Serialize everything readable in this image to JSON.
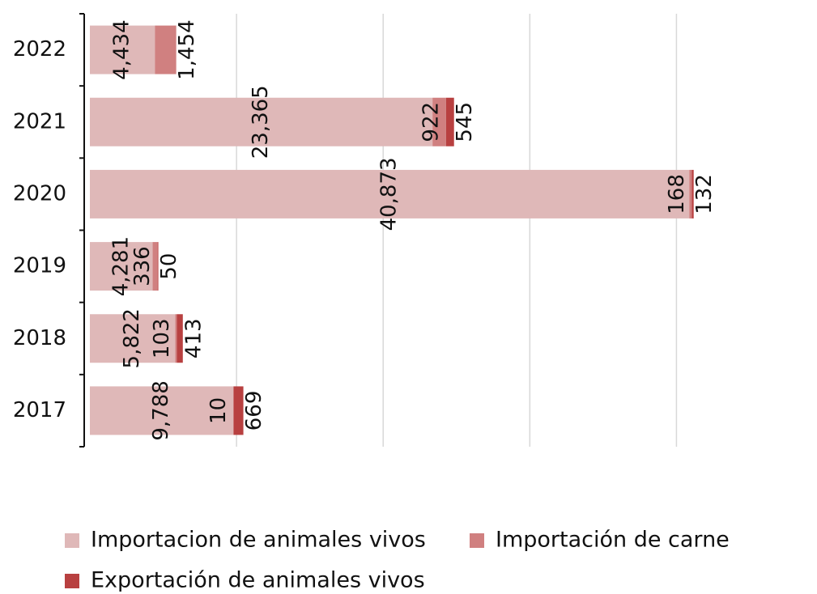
{
  "chart_data": {
    "type": "stacked_barh",
    "categories": [
      "2022",
      "2021",
      "2020",
      "2019",
      "2018",
      "2017"
    ],
    "series": [
      {
        "name": "Importacion de animales vivos",
        "color": "#dfb8b8",
        "values": [
          4434,
          23365,
          40873,
          4281,
          5822,
          9788
        ],
        "value_labels": [
          "4,434",
          "23,365",
          "40,873",
          "4,281",
          "5,822",
          "9,788"
        ]
      },
      {
        "name": "Importación de carne",
        "color": "#d08080",
        "values": [
          1454,
          922,
          168,
          336,
          103,
          10
        ],
        "value_labels": [
          "1,454",
          "922",
          "168",
          "336",
          "103",
          "10"
        ]
      },
      {
        "name": "Exportación de animales vivos",
        "color": "#b84040",
        "values": [
          null,
          545,
          132,
          50,
          413,
          669
        ],
        "value_labels": [
          null,
          "545",
          "132",
          "50",
          "413",
          "669"
        ]
      }
    ],
    "xlim": [
      0,
      45000
    ],
    "xticks": [
      10000,
      20000,
      30000,
      40000
    ],
    "grid": true
  }
}
